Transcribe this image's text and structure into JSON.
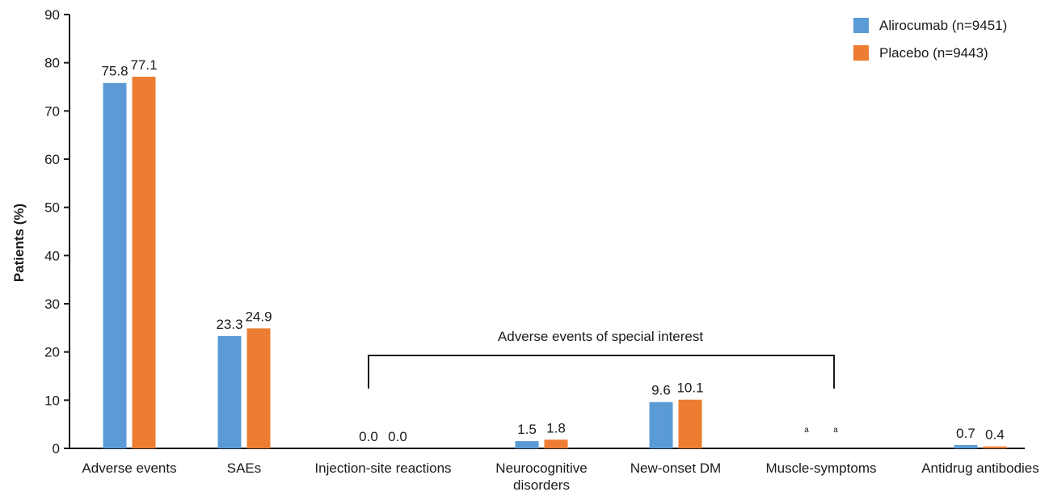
{
  "chart_data": {
    "type": "bar",
    "ylabel": "Patients (%)",
    "ylim": [
      0,
      90
    ],
    "yticks": [
      0,
      10,
      20,
      30,
      40,
      50,
      60,
      70,
      80,
      90
    ],
    "categories": [
      [
        "Adverse events"
      ],
      [
        "SAEs"
      ],
      [
        "Injection-site reactions"
      ],
      [
        "Neurocognitive",
        "disorders"
      ],
      [
        "New-onset DM"
      ],
      [
        "Muscle-symptoms"
      ],
      [
        "Antidrug antibodies"
      ]
    ],
    "series": [
      {
        "name": "Alirocumab (n=9451)",
        "color": "#5b9bd5",
        "values": [
          75.8,
          23.3,
          0.0,
          1.5,
          9.6,
          null,
          0.7
        ],
        "labels": [
          "75.8",
          "23.3",
          "0.0",
          "1.5",
          "9.6",
          "a",
          "0.7"
        ]
      },
      {
        "name": "Placebo (n=9443)",
        "color": "#ed7d31",
        "values": [
          77.1,
          24.9,
          0.0,
          1.8,
          10.1,
          null,
          0.4
        ],
        "labels": [
          "77.1",
          "24.9",
          "0.0",
          "1.8",
          "10.1",
          "a",
          "0.4"
        ]
      }
    ],
    "annotation": {
      "text": "Adverse events of special interest",
      "span_categories": [
        2,
        5
      ]
    },
    "legend_position": "top-right",
    "grid": false
  }
}
